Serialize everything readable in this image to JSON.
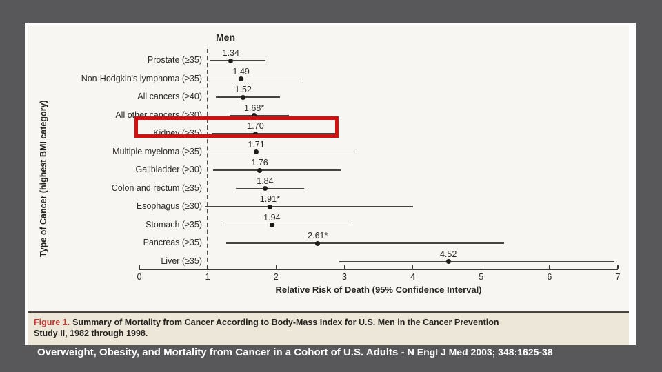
{
  "colors": {
    "background": "#58585a",
    "chart_background": "#f7f6f3",
    "caption_background": "#ede7da",
    "highlight_red": "#d40f0f",
    "caption_label_red": "#c2372e",
    "ink": "#26231f",
    "footer_text": "#ffffff"
  },
  "chart_data": {
    "type": "scatter",
    "variant": "forest-plot",
    "group_header": "Men",
    "xlabel": "Relative Risk of Death (95% Confidence Interval)",
    "ylabel": "Type of Cancer (highest BMI category)",
    "xlim": [
      0,
      7
    ],
    "xticks": [
      0,
      1,
      2,
      3,
      4,
      5,
      6,
      7
    ],
    "reference_line_x": 1,
    "grid": false,
    "rows": [
      {
        "label": "Prostate (≥35)",
        "rr": 1.34,
        "rr_label": "1.34",
        "ci": [
          1.03,
          1.85
        ],
        "highlighted": false
      },
      {
        "label": "Non-Hodgkin's lymphoma (≥35)",
        "rr": 1.49,
        "rr_label": "1.49",
        "ci": [
          0.93,
          2.39
        ],
        "highlighted": false
      },
      {
        "label": "All cancers (≥40)",
        "rr": 1.52,
        "rr_label": "1.52",
        "ci": [
          1.12,
          2.06
        ],
        "highlighted": false
      },
      {
        "label": "All other cancers (≥30)",
        "rr": 1.68,
        "rr_label": "1.68*",
        "ci": [
          1.32,
          2.19
        ],
        "highlighted": false
      },
      {
        "label": "Kidney (≥35)",
        "rr": 1.7,
        "rr_label": "1.70",
        "ci": [
          1.06,
          2.92
        ],
        "highlighted": true
      },
      {
        "label": "Multiple myeloma (≥35)",
        "rr": 1.71,
        "rr_label": "1.71",
        "ci": [
          0.98,
          3.16
        ],
        "highlighted": false
      },
      {
        "label": "Gallbladder (≥30)",
        "rr": 1.76,
        "rr_label": "1.76",
        "ci": [
          1.08,
          2.95
        ],
        "highlighted": false
      },
      {
        "label": "Colon and rectum (≥35)",
        "rr": 1.84,
        "rr_label": "1.84",
        "ci": [
          1.41,
          2.41
        ],
        "highlighted": false
      },
      {
        "label": "Esophagus (≥30)",
        "rr": 1.91,
        "rr_label": "1.91*",
        "ci": [
          0.97,
          4.0
        ],
        "highlighted": false
      },
      {
        "label": "Stomach (≥35)",
        "rr": 1.94,
        "rr_label": "1.94",
        "ci": [
          1.2,
          3.12
        ],
        "highlighted": false
      },
      {
        "label": "Pancreas (≥35)",
        "rr": 2.61,
        "rr_label": "2.61*",
        "ci": [
          1.27,
          5.34
        ],
        "highlighted": false
      },
      {
        "label": "Liver (≥35)",
        "rr": 4.52,
        "rr_label": "4.52",
        "ci": [
          2.93,
          6.95
        ],
        "highlighted": false
      }
    ]
  },
  "figure_caption": {
    "label": "Figure 1.",
    "line1": "Summary of Mortality from Cancer According to Body-Mass Index for U.S. Men in the Cancer Prevention",
    "line2": "Study II, 1982 through 1998."
  },
  "footer": {
    "title": "Overweight, Obesity, and Mortality from Cancer in a Cohort of U.S. Adults",
    "separator": " - ",
    "reference": "N Engl J Med 2003; 348:1625-38"
  }
}
